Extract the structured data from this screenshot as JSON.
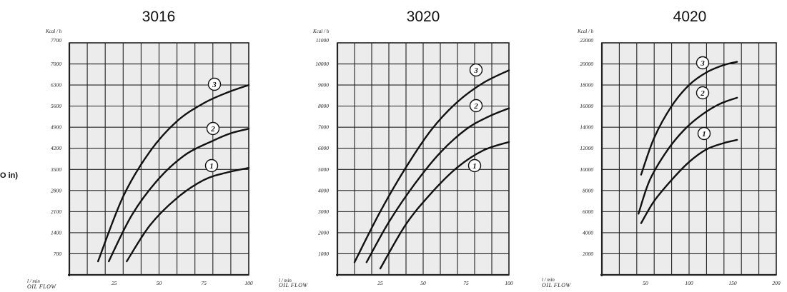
{
  "page": {
    "edge_text": "O in)"
  },
  "colors": {
    "background": "#ffffff",
    "plot_fill": "#ececec",
    "grid": "#222222",
    "curve": "#111111"
  },
  "chart_data": [
    {
      "type": "line",
      "title": "3016",
      "ylabel": "Kcal / h",
      "xlabel": "OIL FLOW",
      "xunit": "l / min",
      "ylim": [
        0,
        7700
      ],
      "xlim": [
        0,
        100
      ],
      "yticks": [
        "700",
        "1400",
        "2100",
        "2800",
        "3500",
        "4200",
        "4900",
        "5600",
        "6300",
        "7000",
        "7700"
      ],
      "xticks": [
        "25",
        "50",
        "75",
        "100"
      ],
      "xtick_values": [
        25,
        50,
        75,
        100
      ],
      "grid": true,
      "series": [
        {
          "name": "3",
          "x": [
            16,
            30,
            45,
            60,
            75,
            88,
            100
          ],
          "y": [
            450,
            2600,
            4100,
            5100,
            5700,
            6050,
            6300
          ]
        },
        {
          "name": "2",
          "x": [
            22,
            35,
            50,
            65,
            80,
            90,
            100
          ],
          "y": [
            450,
            2000,
            3200,
            4000,
            4450,
            4700,
            4850
          ]
        },
        {
          "name": "1",
          "x": [
            32,
            45,
            60,
            75,
            88,
            100
          ],
          "y": [
            450,
            1650,
            2550,
            3150,
            3400,
            3550
          ]
        }
      ]
    },
    {
      "type": "line",
      "title": "3020",
      "ylabel": "Kcal / h",
      "xlabel": "OIL FLOW",
      "xunit": "l / min",
      "ylim": [
        0,
        11000
      ],
      "xlim": [
        0,
        100
      ],
      "yticks": [
        "1000",
        "2000",
        "3000",
        "4000",
        "5000",
        "6000",
        "7000",
        "8000",
        "9000",
        "10000",
        "11000"
      ],
      "xticks": [
        "25",
        "50",
        "75",
        "100"
      ],
      "xtick_values": [
        25,
        50,
        75,
        100
      ],
      "grid": true,
      "series": [
        {
          "name": "3",
          "x": [
            10,
            25,
            40,
            55,
            70,
            85,
            100
          ],
          "y": [
            600,
            3000,
            5100,
            6900,
            8200,
            9100,
            9700
          ]
        },
        {
          "name": "2",
          "x": [
            17,
            30,
            45,
            60,
            75,
            88,
            100
          ],
          "y": [
            600,
            2500,
            4300,
            5800,
            6900,
            7500,
            7900
          ]
        },
        {
          "name": "1",
          "x": [
            25,
            40,
            55,
            70,
            85,
            100
          ],
          "y": [
            300,
            2400,
            3900,
            5100,
            5900,
            6300
          ]
        }
      ]
    },
    {
      "type": "line",
      "title": "4020",
      "ylabel": "Kcal / h",
      "xlabel": "OIL FLOW",
      "xunit": "l / min",
      "ylim": [
        0,
        22000
      ],
      "xlim": [
        0,
        200
      ],
      "yticks": [
        "2000",
        "4000",
        "6000",
        "8000",
        "10000",
        "12000",
        "14000",
        "16000",
        "18000",
        "20000",
        "22000"
      ],
      "xticks": [
        "50",
        "100",
        "150",
        "200"
      ],
      "xtick_values": [
        50,
        100,
        150,
        200
      ],
      "grid": true,
      "series": [
        {
          "name": "3",
          "x": [
            45,
            60,
            80,
            100,
            120,
            140,
            155
          ],
          "y": [
            9500,
            13000,
            16000,
            18000,
            19200,
            19900,
            20200
          ]
        },
        {
          "name": "2",
          "x": [
            42,
            55,
            75,
            95,
            115,
            135,
            155
          ],
          "y": [
            5800,
            9000,
            11800,
            13800,
            15200,
            16200,
            16800
          ]
        },
        {
          "name": "1",
          "x": [
            45,
            60,
            80,
            100,
            120,
            140,
            155
          ],
          "y": [
            4900,
            7000,
            9000,
            10700,
            11900,
            12500,
            12800
          ]
        }
      ]
    }
  ]
}
